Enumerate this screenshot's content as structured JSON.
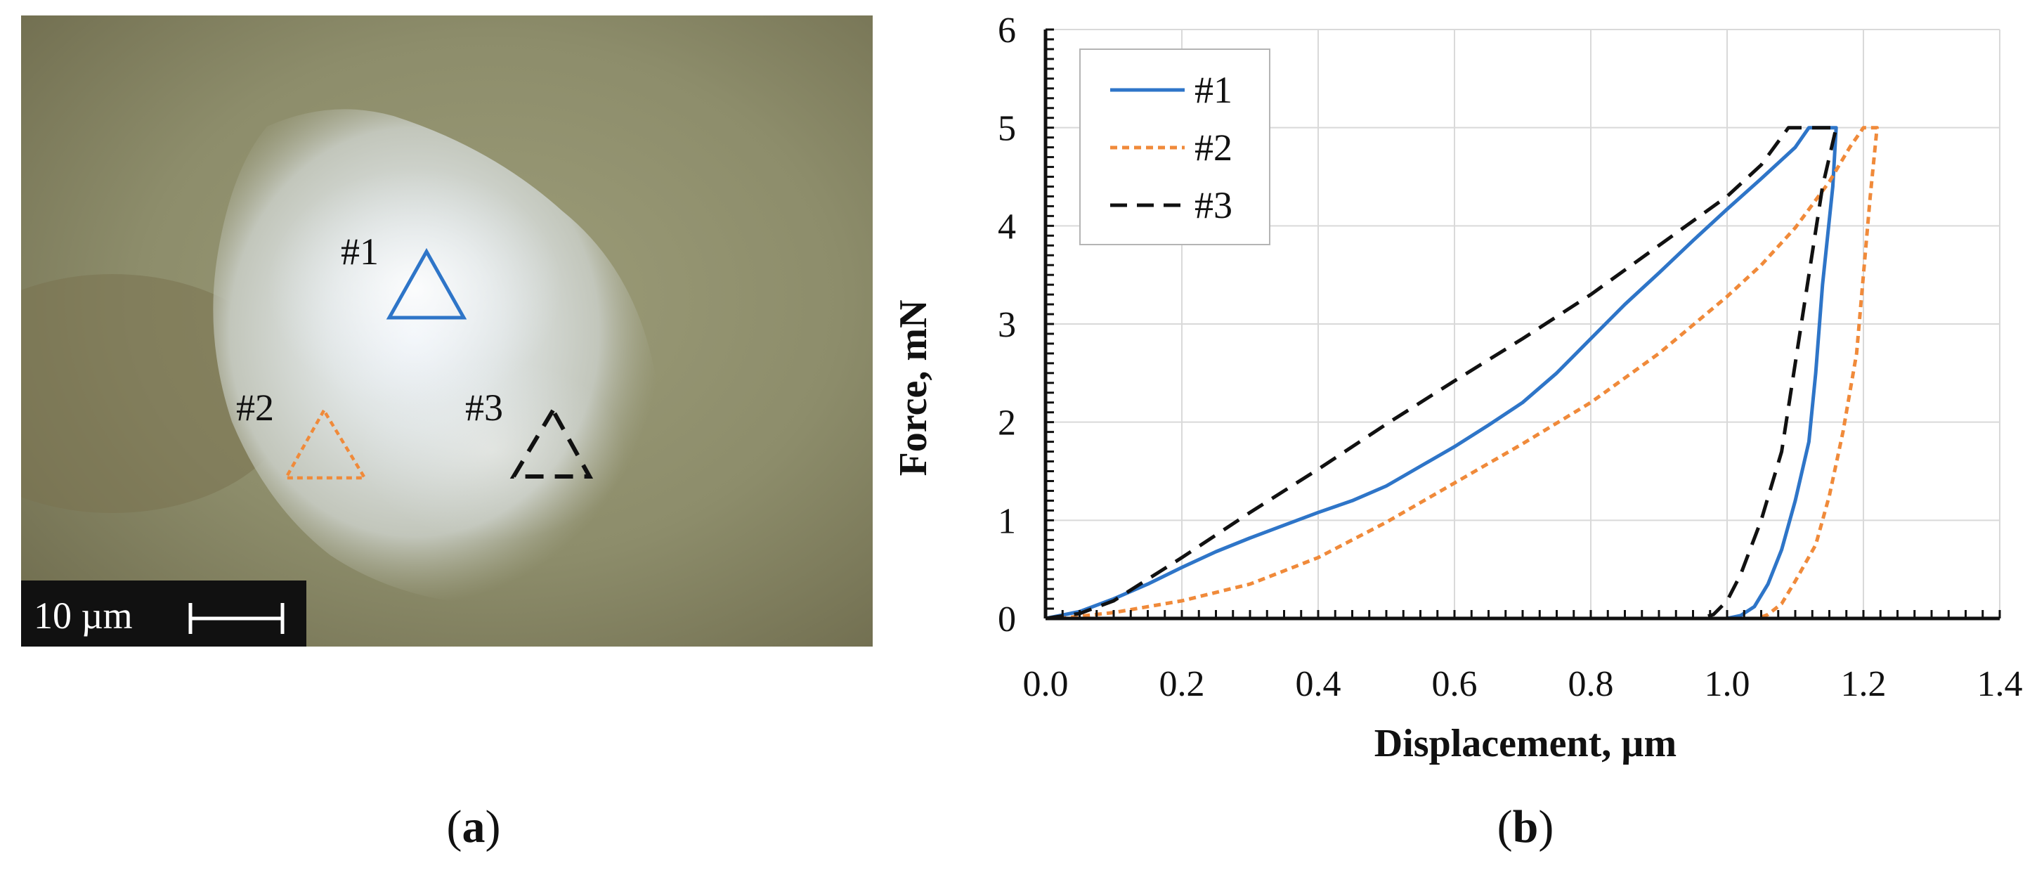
{
  "panel_a": {
    "caption_letter": "a",
    "scale_bar_label": "10 µm",
    "indents": [
      {
        "label": "#1",
        "color": "#2e75c8",
        "style": "solid"
      },
      {
        "label": "#2",
        "color": "#f08a3a",
        "style": "dotted"
      },
      {
        "label": "#3",
        "color": "#111111",
        "style": "dashed"
      }
    ]
  },
  "panel_b": {
    "caption_letter": "b"
  },
  "chart_data": {
    "type": "line",
    "xlabel": "Displacement, µm",
    "ylabel": "Force, mN",
    "xlim": [
      0,
      1.4
    ],
    "ylim": [
      0,
      6
    ],
    "x_ticks": [
      "0.0",
      "0.2",
      "0.4",
      "0.6",
      "0.8",
      "1.0",
      "1.2",
      "1.4"
    ],
    "y_ticks": [
      "0",
      "1",
      "2",
      "3",
      "4",
      "5",
      "6"
    ],
    "grid": true,
    "legend_position": "top-left",
    "series": [
      {
        "name": "#1",
        "color": "#2e75c8",
        "dash": "solid",
        "points": [
          [
            0.0,
            0.0
          ],
          [
            0.05,
            0.07
          ],
          [
            0.1,
            0.2
          ],
          [
            0.15,
            0.35
          ],
          [
            0.2,
            0.52
          ],
          [
            0.25,
            0.68
          ],
          [
            0.3,
            0.82
          ],
          [
            0.35,
            0.95
          ],
          [
            0.4,
            1.08
          ],
          [
            0.45,
            1.2
          ],
          [
            0.5,
            1.35
          ],
          [
            0.55,
            1.55
          ],
          [
            0.6,
            1.75
          ],
          [
            0.65,
            1.97
          ],
          [
            0.7,
            2.2
          ],
          [
            0.75,
            2.5
          ],
          [
            0.8,
            2.85
          ],
          [
            0.85,
            3.2
          ],
          [
            0.9,
            3.52
          ],
          [
            0.95,
            3.85
          ],
          [
            1.0,
            4.17
          ],
          [
            1.05,
            4.48
          ],
          [
            1.1,
            4.8
          ],
          [
            1.12,
            5.0
          ],
          [
            1.16,
            5.0
          ],
          [
            1.155,
            4.4
          ],
          [
            1.14,
            3.4
          ],
          [
            1.13,
            2.5
          ],
          [
            1.12,
            1.8
          ],
          [
            1.1,
            1.2
          ],
          [
            1.08,
            0.7
          ],
          [
            1.06,
            0.35
          ],
          [
            1.04,
            0.12
          ],
          [
            1.02,
            0.03
          ],
          [
            1.0,
            0.0
          ]
        ]
      },
      {
        "name": "#2",
        "color": "#f08a3a",
        "dash": "dotted",
        "points": [
          [
            0.02,
            0.0
          ],
          [
            0.1,
            0.06
          ],
          [
            0.2,
            0.18
          ],
          [
            0.3,
            0.35
          ],
          [
            0.4,
            0.62
          ],
          [
            0.5,
            0.98
          ],
          [
            0.6,
            1.38
          ],
          [
            0.7,
            1.78
          ],
          [
            0.8,
            2.2
          ],
          [
            0.9,
            2.7
          ],
          [
            1.0,
            3.28
          ],
          [
            1.05,
            3.6
          ],
          [
            1.1,
            3.98
          ],
          [
            1.15,
            4.45
          ],
          [
            1.18,
            4.8
          ],
          [
            1.2,
            5.0
          ],
          [
            1.22,
            5.0
          ],
          [
            1.21,
            4.3
          ],
          [
            1.2,
            3.5
          ],
          [
            1.19,
            2.7
          ],
          [
            1.17,
            1.9
          ],
          [
            1.15,
            1.25
          ],
          [
            1.13,
            0.75
          ],
          [
            1.1,
            0.38
          ],
          [
            1.08,
            0.15
          ],
          [
            1.06,
            0.04
          ],
          [
            1.045,
            0.0
          ]
        ]
      },
      {
        "name": "#3",
        "color": "#111111",
        "dash": "dashed",
        "points": [
          [
            0.0,
            0.0
          ],
          [
            0.05,
            0.05
          ],
          [
            0.1,
            0.18
          ],
          [
            0.2,
            0.62
          ],
          [
            0.3,
            1.08
          ],
          [
            0.4,
            1.52
          ],
          [
            0.5,
            1.98
          ],
          [
            0.6,
            2.42
          ],
          [
            0.7,
            2.85
          ],
          [
            0.8,
            3.3
          ],
          [
            0.9,
            3.8
          ],
          [
            1.0,
            4.3
          ],
          [
            1.05,
            4.62
          ],
          [
            1.09,
            5.0
          ],
          [
            1.16,
            5.0
          ],
          [
            1.14,
            4.4
          ],
          [
            1.12,
            3.5
          ],
          [
            1.1,
            2.6
          ],
          [
            1.08,
            1.7
          ],
          [
            1.05,
            1.0
          ],
          [
            1.02,
            0.45
          ],
          [
            1.0,
            0.18
          ],
          [
            0.98,
            0.04
          ],
          [
            0.96,
            0.0
          ]
        ]
      }
    ]
  }
}
